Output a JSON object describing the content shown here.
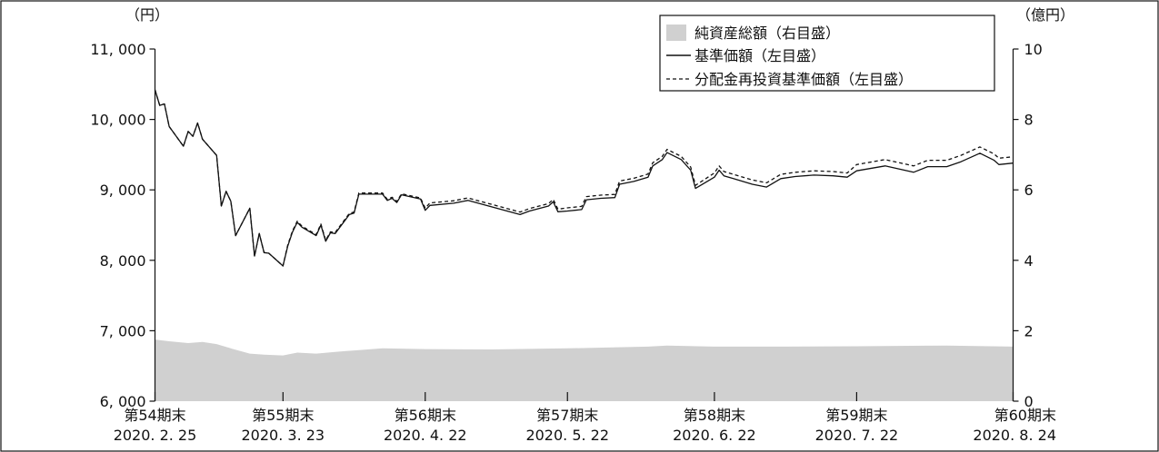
{
  "chart_data": {
    "type": "line",
    "units": {
      "left": "（円）",
      "right": "（億円）"
    },
    "y_left": {
      "range": [
        6000,
        11000
      ],
      "ticks": [
        6000,
        7000,
        8000,
        9000,
        10000,
        11000
      ],
      "tick_labels": [
        "6, 000",
        "7, 000",
        "8, 000",
        "9, 000",
        "10, 000",
        "11, 000"
      ]
    },
    "y_right": {
      "range": [
        0,
        10
      ],
      "ticks": [
        0,
        2,
        4,
        6,
        8,
        10
      ],
      "tick_labels": [
        "0",
        "2",
        "4",
        "6",
        "8",
        "10"
      ]
    },
    "x_axis": {
      "range": [
        "2020-02-25",
        "2020-08-24"
      ],
      "categories": [
        {
          "date": "2020-02-25",
          "period": "第54期末",
          "label": "2020. 2. 25"
        },
        {
          "date": "2020-03-23",
          "period": "第55期末",
          "label": "2020. 3. 23"
        },
        {
          "date": "2020-04-22",
          "period": "第56期末",
          "label": "2020. 4. 22"
        },
        {
          "date": "2020-05-22",
          "period": "第57期末",
          "label": "2020. 5. 22"
        },
        {
          "date": "2020-06-22",
          "period": "第58期末",
          "label": "2020. 6. 22"
        },
        {
          "date": "2020-07-22",
          "period": "第59期末",
          "label": "2020. 7. 22"
        },
        {
          "date": "2020-08-24",
          "period": "第60期末",
          "label": "2020. 8. 24"
        }
      ]
    },
    "legend": {
      "placement": "top-right",
      "entries": [
        "純資産総額（右目盛）",
        "基準価額（左目盛）",
        "分配金再投資基準価額（左目盛）"
      ]
    },
    "series": [
      {
        "name": "純資産総額（右目盛）",
        "type": "area",
        "axis": "right",
        "color": "#d0d0d0",
        "points": [
          [
            "2020-02-25",
            1.75
          ],
          [
            "2020-02-28",
            1.7
          ],
          [
            "2020-03-03",
            1.65
          ],
          [
            "2020-03-06",
            1.68
          ],
          [
            "2020-03-09",
            1.62
          ],
          [
            "2020-03-12",
            1.5
          ],
          [
            "2020-03-16",
            1.35
          ],
          [
            "2020-03-19",
            1.32
          ],
          [
            "2020-03-23",
            1.3
          ],
          [
            "2020-03-26",
            1.38
          ],
          [
            "2020-03-30",
            1.35
          ],
          [
            "2020-04-03",
            1.4
          ],
          [
            "2020-04-08",
            1.45
          ],
          [
            "2020-04-13",
            1.5
          ],
          [
            "2020-04-22",
            1.48
          ],
          [
            "2020-05-06",
            1.47
          ],
          [
            "2020-05-22",
            1.5
          ],
          [
            "2020-06-08",
            1.55
          ],
          [
            "2020-06-12",
            1.58
          ],
          [
            "2020-06-22",
            1.55
          ],
          [
            "2020-07-06",
            1.55
          ],
          [
            "2020-07-22",
            1.56
          ],
          [
            "2020-08-10",
            1.58
          ],
          [
            "2020-08-24",
            1.55
          ]
        ]
      },
      {
        "name": "基準価額（左目盛）",
        "type": "line",
        "axis": "left",
        "color": "#111111",
        "dash": "solid",
        "points": [
          [
            "2020-02-25",
            10420
          ],
          [
            "2020-02-26",
            10200
          ],
          [
            "2020-02-27",
            10220
          ],
          [
            "2020-02-28",
            9900
          ],
          [
            "2020-03-02",
            9620
          ],
          [
            "2020-03-03",
            9830
          ],
          [
            "2020-03-04",
            9760
          ],
          [
            "2020-03-05",
            9950
          ],
          [
            "2020-03-06",
            9720
          ],
          [
            "2020-03-09",
            9490
          ],
          [
            "2020-03-10",
            8770
          ],
          [
            "2020-03-11",
            8980
          ],
          [
            "2020-03-12",
            8840
          ],
          [
            "2020-03-13",
            8350
          ],
          [
            "2020-03-16",
            8740
          ],
          [
            "2020-03-17",
            8060
          ],
          [
            "2020-03-18",
            8380
          ],
          [
            "2020-03-19",
            8110
          ],
          [
            "2020-03-20",
            8100
          ],
          [
            "2020-03-23",
            7920
          ],
          [
            "2020-03-24",
            8200
          ],
          [
            "2020-03-25",
            8400
          ],
          [
            "2020-03-26",
            8540
          ],
          [
            "2020-03-27",
            8470
          ],
          [
            "2020-03-30",
            8350
          ],
          [
            "2020-03-31",
            8500
          ],
          [
            "2020-04-01",
            8270
          ],
          [
            "2020-04-02",
            8390
          ],
          [
            "2020-04-03",
            8380
          ],
          [
            "2020-04-06",
            8650
          ],
          [
            "2020-04-07",
            8670
          ],
          [
            "2020-04-08",
            8940
          ],
          [
            "2020-04-13",
            8940
          ],
          [
            "2020-04-14",
            8850
          ],
          [
            "2020-04-15",
            8880
          ],
          [
            "2020-04-16",
            8820
          ],
          [
            "2020-04-17",
            8930
          ],
          [
            "2020-04-21",
            8870
          ],
          [
            "2020-04-22",
            8710
          ],
          [
            "2020-04-23",
            8780
          ],
          [
            "2020-04-28",
            8810
          ],
          [
            "2020-05-01",
            8850
          ],
          [
            "2020-05-12",
            8650
          ],
          [
            "2020-05-14",
            8700
          ],
          [
            "2020-05-18",
            8770
          ],
          [
            "2020-05-19",
            8830
          ],
          [
            "2020-05-20",
            8690
          ],
          [
            "2020-05-22",
            8700
          ],
          [
            "2020-05-25",
            8720
          ],
          [
            "2020-05-26",
            8860
          ],
          [
            "2020-05-29",
            8880
          ],
          [
            "2020-06-01",
            8890
          ],
          [
            "2020-06-02",
            9080
          ],
          [
            "2020-06-05",
            9120
          ],
          [
            "2020-06-08",
            9180
          ],
          [
            "2020-06-09",
            9340
          ],
          [
            "2020-06-11",
            9430
          ],
          [
            "2020-06-12",
            9530
          ],
          [
            "2020-06-15",
            9430
          ],
          [
            "2020-06-17",
            9280
          ],
          [
            "2020-06-18",
            9020
          ],
          [
            "2020-06-22",
            9180
          ],
          [
            "2020-06-23",
            9280
          ],
          [
            "2020-06-24",
            9200
          ],
          [
            "2020-06-26",
            9160
          ],
          [
            "2020-06-30",
            9080
          ],
          [
            "2020-07-03",
            9040
          ],
          [
            "2020-07-06",
            9160
          ],
          [
            "2020-07-09",
            9190
          ],
          [
            "2020-07-13",
            9210
          ],
          [
            "2020-07-17",
            9200
          ],
          [
            "2020-07-20",
            9180
          ],
          [
            "2020-07-22",
            9270
          ],
          [
            "2020-07-28",
            9340
          ],
          [
            "2020-08-03",
            9250
          ],
          [
            "2020-08-06",
            9330
          ],
          [
            "2020-08-10",
            9330
          ],
          [
            "2020-08-13",
            9400
          ],
          [
            "2020-08-17",
            9520
          ],
          [
            "2020-08-20",
            9420
          ],
          [
            "2020-08-21",
            9360
          ],
          [
            "2020-08-24",
            9380
          ]
        ]
      },
      {
        "name": "分配金再投資基準価額（左目盛）",
        "type": "line",
        "axis": "left",
        "color": "#111111",
        "dash": "dashed",
        "points": [
          [
            "2020-02-25",
            10420
          ],
          [
            "2020-02-26",
            10200
          ],
          [
            "2020-02-27",
            10220
          ],
          [
            "2020-02-28",
            9900
          ],
          [
            "2020-03-02",
            9620
          ],
          [
            "2020-03-03",
            9830
          ],
          [
            "2020-03-04",
            9760
          ],
          [
            "2020-03-05",
            9950
          ],
          [
            "2020-03-06",
            9720
          ],
          [
            "2020-03-09",
            9490
          ],
          [
            "2020-03-10",
            8770
          ],
          [
            "2020-03-11",
            8980
          ],
          [
            "2020-03-12",
            8840
          ],
          [
            "2020-03-13",
            8350
          ],
          [
            "2020-03-16",
            8740
          ],
          [
            "2020-03-17",
            8060
          ],
          [
            "2020-03-18",
            8380
          ],
          [
            "2020-03-19",
            8110
          ],
          [
            "2020-03-20",
            8100
          ],
          [
            "2020-03-23",
            7920
          ],
          [
            "2020-03-24",
            8215
          ],
          [
            "2020-03-25",
            8415
          ],
          [
            "2020-03-26",
            8555
          ],
          [
            "2020-03-27",
            8485
          ],
          [
            "2020-03-30",
            8365
          ],
          [
            "2020-03-31",
            8515
          ],
          [
            "2020-04-01",
            8285
          ],
          [
            "2020-04-02",
            8405
          ],
          [
            "2020-04-03",
            8395
          ],
          [
            "2020-04-06",
            8665
          ],
          [
            "2020-04-07",
            8685
          ],
          [
            "2020-04-08",
            8955
          ],
          [
            "2020-04-13",
            8955
          ],
          [
            "2020-04-14",
            8865
          ],
          [
            "2020-04-15",
            8895
          ],
          [
            "2020-04-16",
            8835
          ],
          [
            "2020-04-17",
            8945
          ],
          [
            "2020-04-21",
            8885
          ],
          [
            "2020-04-22",
            8740
          ],
          [
            "2020-04-23",
            8815
          ],
          [
            "2020-04-28",
            8845
          ],
          [
            "2020-05-01",
            8885
          ],
          [
            "2020-05-12",
            8685
          ],
          [
            "2020-05-14",
            8735
          ],
          [
            "2020-05-18",
            8805
          ],
          [
            "2020-05-19",
            8865
          ],
          [
            "2020-05-20",
            8725
          ],
          [
            "2020-05-22",
            8745
          ],
          [
            "2020-05-25",
            8765
          ],
          [
            "2020-05-26",
            8905
          ],
          [
            "2020-05-29",
            8925
          ],
          [
            "2020-06-01",
            8935
          ],
          [
            "2020-06-02",
            9125
          ],
          [
            "2020-06-05",
            9165
          ],
          [
            "2020-06-08",
            9225
          ],
          [
            "2020-06-09",
            9385
          ],
          [
            "2020-06-11",
            9475
          ],
          [
            "2020-06-12",
            9575
          ],
          [
            "2020-06-15",
            9475
          ],
          [
            "2020-06-17",
            9325
          ],
          [
            "2020-06-18",
            9065
          ],
          [
            "2020-06-22",
            9240
          ],
          [
            "2020-06-23",
            9340
          ],
          [
            "2020-06-24",
            9260
          ],
          [
            "2020-06-26",
            9220
          ],
          [
            "2020-06-30",
            9140
          ],
          [
            "2020-07-03",
            9100
          ],
          [
            "2020-07-06",
            9220
          ],
          [
            "2020-07-09",
            9250
          ],
          [
            "2020-07-13",
            9270
          ],
          [
            "2020-07-17",
            9260
          ],
          [
            "2020-07-20",
            9240
          ],
          [
            "2020-07-22",
            9360
          ],
          [
            "2020-07-28",
            9430
          ],
          [
            "2020-08-03",
            9340
          ],
          [
            "2020-08-06",
            9420
          ],
          [
            "2020-08-10",
            9420
          ],
          [
            "2020-08-13",
            9490
          ],
          [
            "2020-08-17",
            9610
          ],
          [
            "2020-08-20",
            9510
          ],
          [
            "2020-08-21",
            9450
          ],
          [
            "2020-08-24",
            9470
          ]
        ]
      }
    ]
  }
}
